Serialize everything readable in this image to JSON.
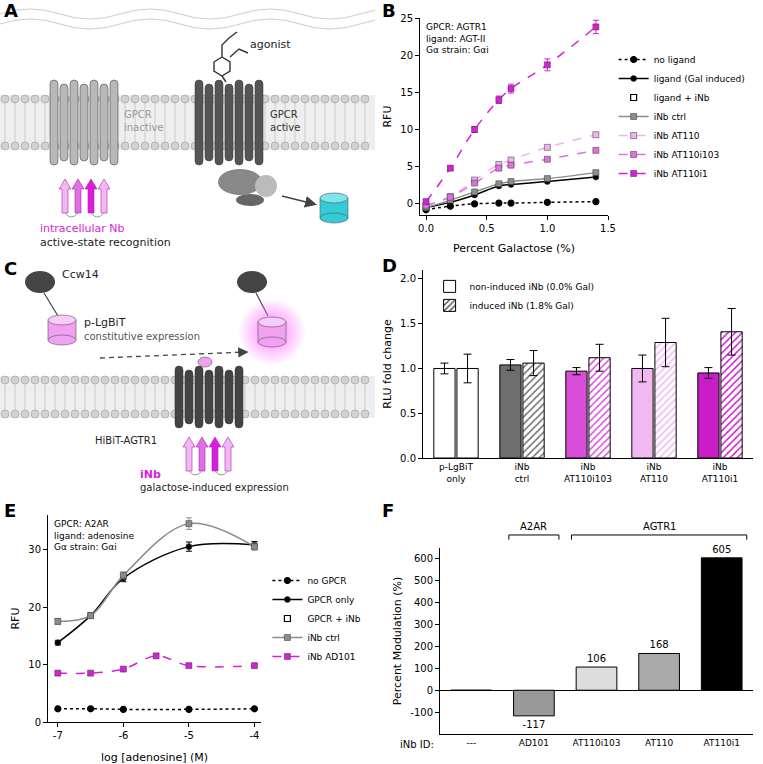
{
  "diagrams": [
    {
      "panel": "A",
      "agonist": "agonist",
      "receptors": [
        {
          "label": "GPCR",
          "state": "inactive"
        },
        {
          "label": "GPCR",
          "state": "active"
        }
      ],
      "nanobody": {
        "label": "intracellular Nb",
        "note": "active-state recognition"
      }
    },
    {
      "panel": "C",
      "anchor": "Ccw14",
      "reporter": {
        "label": "p-LgBiT",
        "note": "constitutive expression"
      },
      "receptor": "HiBiT-AGTR1",
      "nanobody": {
        "label": "iNb",
        "note": "galactose-induced expression"
      }
    }
  ],
  "chart_data": [
    {
      "panel": "B",
      "type": "line",
      "annotation": [
        "GPCR: AGTR1",
        "ligand: AGT-II",
        "Gα strain: Gαi"
      ],
      "x_label": "Percent Galactose (%)",
      "y_label": "RFU",
      "x": [
        0,
        0.2,
        0.4,
        0.6,
        0.7,
        1.0,
        1.4
      ],
      "xlim": [
        -0.05,
        1.5
      ],
      "xticks": [
        {
          "value": 0,
          "label": "0.0"
        },
        {
          "value": 0.5,
          "label": "0.5"
        },
        {
          "value": 1,
          "label": "1.0"
        },
        {
          "value": 1.5,
          "label": "1.5"
        }
      ],
      "ylim": [
        -1.5,
        25
      ],
      "yticks": [
        0,
        5,
        10,
        15,
        20,
        25
      ],
      "grid": false,
      "legend": "right",
      "series": [
        {
          "name": "no ligand",
          "color": "#000000",
          "marker": "triangle-open",
          "line_style": "dot",
          "values": [
            -0.8,
            -0.3,
            0.0,
            0.1,
            0.1,
            0.2,
            0.3
          ]
        },
        {
          "name": "ligand (Gal induced)",
          "color": "#000000",
          "marker": "circle",
          "line_style": "solid",
          "values": [
            -0.5,
            0.2,
            1.2,
            2.4,
            2.6,
            3.0,
            3.6
          ]
        },
        {
          "name": "ligand + iNb",
          "color": "#000000",
          "marker": "square-open",
          "values": [
            null,
            null,
            null,
            null,
            null,
            null,
            null
          ]
        },
        {
          "name": "iNb ctrl",
          "color": "#8c8c8c",
          "marker": "square",
          "line_style": "solid",
          "values": [
            -0.5,
            0.5,
            1.6,
            2.7,
            3.0,
            3.4,
            4.2
          ]
        },
        {
          "name": "iNb AT110",
          "color": "#f0b3f0",
          "marker": "square",
          "line_style": "dash",
          "values": [
            -0.3,
            1.0,
            3.2,
            5.3,
            5.9,
            7.6,
            9.3
          ]
        },
        {
          "name": "iNb AT110i103",
          "color": "#e070e0",
          "marker": "square",
          "line_style": "dash",
          "values": [
            -0.2,
            0.9,
            2.8,
            4.8,
            5.2,
            6.0,
            7.2
          ]
        },
        {
          "name": "iNb AT110i1",
          "color": "#d91ed9",
          "marker": "square",
          "line_style": "dash",
          "values": [
            0.3,
            4.8,
            10.0,
            14.0,
            15.5,
            18.7,
            23.8
          ],
          "errors": [
            0.3,
            0.3,
            0.4,
            0.5,
            0.6,
            0.8,
            0.9
          ]
        }
      ]
    },
    {
      "panel": "D",
      "type": "bar",
      "y_label": "RLU fold change",
      "categories": [
        "p-LgBiT only",
        "iNb ctrl",
        "iNb AT110i103",
        "iNb AT110",
        "iNb AT110i1"
      ],
      "ylim": [
        0,
        2.1
      ],
      "yticks": [
        {
          "value": 0,
          "label": "0.0"
        },
        {
          "value": 0.5,
          "label": "0.5"
        },
        {
          "value": 1,
          "label": "1.0"
        },
        {
          "value": 1.5,
          "label": "1.5"
        },
        {
          "value": 2,
          "label": "2.0"
        }
      ],
      "grid": false,
      "legend": "top-left",
      "series": [
        {
          "name": "non-induced iNb (0.0% Gal)",
          "marker": "solid",
          "colors": [
            "#ffffff",
            "#6e6e6e",
            "#d94ed9",
            "#f2b8f2",
            "#c81ec8"
          ],
          "values": [
            1.0,
            1.04,
            0.97,
            1.0,
            0.95
          ],
          "errors": [
            0.06,
            0.06,
            0.04,
            0.15,
            0.06
          ]
        },
        {
          "name": "induced iNb (1.8% Gal)",
          "marker": "hatched",
          "colors": [
            "#ffffff",
            "#6e6e6e",
            "#d94ed9",
            "#f2b8f2",
            "#c81ec8"
          ],
          "values": [
            1.0,
            1.06,
            1.12,
            1.29,
            1.41
          ],
          "errors": [
            0.16,
            0.14,
            0.15,
            0.27,
            0.26
          ]
        }
      ]
    },
    {
      "panel": "E",
      "type": "line",
      "annotation": [
        "GPCR: A2AR",
        "ligand: adenosine",
        "Gα strain: Gαi"
      ],
      "x_label": "log [adenosine] (M)",
      "y_label": "RFU",
      "x": [
        -7,
        -6.5,
        -6,
        -5.5,
        -5,
        -4
      ],
      "xlim": [
        -7.15,
        -3.9
      ],
      "xticks": [
        -7,
        -6,
        -5,
        -4
      ],
      "ylim": [
        0,
        36
      ],
      "yticks": [
        0,
        10,
        20,
        30
      ],
      "grid": false,
      "legend": "right",
      "series": [
        {
          "name": "no GPCR",
          "color": "#000000",
          "marker": "triangle-open",
          "line_style": "dot",
          "values": [
            2.3,
            2.3,
            2.2,
            null,
            2.2,
            2.3
          ]
        },
        {
          "name": "GPCR only",
          "color": "#000000",
          "marker": "circle",
          "line_style": "solid",
          "values": [
            13.8,
            18.5,
            25.0,
            null,
            30.5,
            30.8
          ],
          "errors": [
            0.4,
            0.5,
            0.6,
            null,
            0.8,
            0.6
          ]
        },
        {
          "name": "GPCR + iNb",
          "color": "#000000",
          "marker": "square-open",
          "values": [
            null,
            null,
            null,
            null,
            null,
            null
          ]
        },
        {
          "name": "iNb ctrl",
          "color": "#8c8c8c",
          "marker": "square",
          "line_style": "solid",
          "values": [
            17.5,
            18.5,
            25.5,
            null,
            34.5,
            30.5
          ],
          "errors": [
            0.5,
            0.5,
            0.6,
            null,
            1.0,
            0.6
          ]
        },
        {
          "name": "iNb AD101",
          "color": "#d91ed9",
          "marker": "square",
          "line_style": "dash",
          "values": [
            8.5,
            8.5,
            9.2,
            11.5,
            9.8,
            9.8
          ]
        }
      ]
    },
    {
      "panel": "F",
      "type": "bar",
      "x_label": "iNb ID:",
      "y_label": "Percent Modulation (%)",
      "categories": [
        "---",
        "AD101",
        "AT110i103",
        "AT110",
        "AT110i1"
      ],
      "values": [
        0,
        -117,
        106,
        168,
        605
      ],
      "value_labels": [
        null,
        "-117",
        "106",
        "168",
        "605"
      ],
      "data_labels": true,
      "colors": [
        "#ffffff",
        "#999999",
        "#dddddd",
        "#aaaaaa",
        "#000000"
      ],
      "groups": [
        {
          "label": "A2AR",
          "categories": [
            "AD101"
          ]
        },
        {
          "label": "AGTR1",
          "categories": [
            "AT110i103",
            "AT110",
            "AT110i1"
          ]
        }
      ],
      "ylim": [
        -200,
        650
      ],
      "yticks": [
        -100,
        0,
        100,
        200,
        300,
        400,
        500,
        600
      ],
      "grid": false
    }
  ]
}
